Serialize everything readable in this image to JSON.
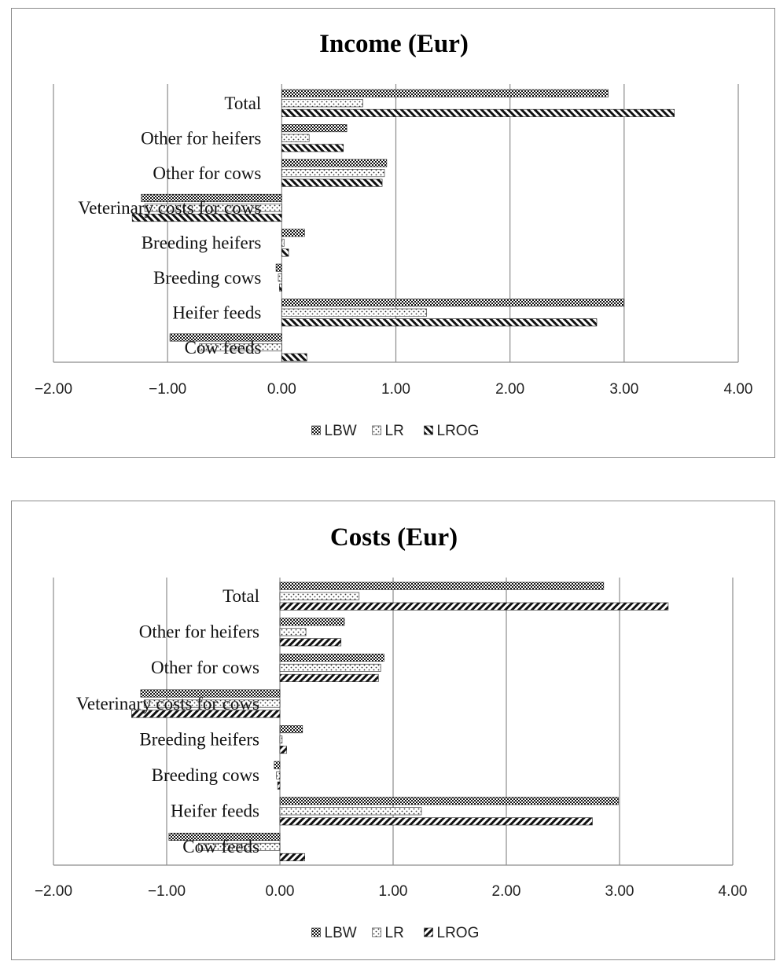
{
  "chart_data": [
    {
      "type": "bar",
      "orientation": "horizontal",
      "title": "Income (Eur)",
      "categories": [
        "Total",
        "Other for heifers",
        "Other for cows",
        "Veterinary costs for cows",
        "Breeding heifers",
        "Breeding cows",
        "Heifer feeds",
        "Cow feeds"
      ],
      "series": [
        {
          "name": "LBW",
          "values": [
            2.86,
            0.57,
            0.92,
            -1.23,
            0.2,
            -0.05,
            3.0,
            -0.98
          ]
        },
        {
          "name": "LR",
          "values": [
            0.71,
            0.24,
            0.9,
            -1.2,
            0.02,
            -0.03,
            1.27,
            -0.72
          ]
        },
        {
          "name": "LROG",
          "values": [
            3.44,
            0.54,
            0.88,
            -1.31,
            0.06,
            -0.02,
            2.76,
            0.22
          ]
        }
      ],
      "xlim": [
        -2.0,
        4.0
      ],
      "xticks": [
        "−2.00",
        "−1.00",
        "0.00",
        "1.00",
        "2.00",
        "3.00",
        "4.00"
      ],
      "grid": "vertical",
      "legend": "bottom",
      "patterns": {
        "LBW": "dense-check",
        "LR": "dots",
        "LROG": "back-diagonal"
      }
    },
    {
      "type": "bar",
      "orientation": "horizontal",
      "title": "Costs (Eur)",
      "categories": [
        "Total",
        "Other for heifers",
        "Other for cows",
        "Veterinary costs for cows",
        "Breeding heifers",
        "Breeding cows",
        "Heifer feeds",
        "Cow feeds"
      ],
      "series": [
        {
          "name": "LBW",
          "values": [
            2.86,
            0.57,
            0.92,
            -1.23,
            0.2,
            -0.05,
            2.99,
            -0.98
          ]
        },
        {
          "name": "LR",
          "values": [
            0.7,
            0.23,
            0.89,
            -1.2,
            0.02,
            -0.03,
            1.25,
            -0.72
          ]
        },
        {
          "name": "LROG",
          "values": [
            3.43,
            0.54,
            0.87,
            -1.31,
            0.06,
            -0.02,
            2.76,
            0.22
          ]
        }
      ],
      "xlim": [
        -2.0,
        4.0
      ],
      "xticks": [
        "−2.00",
        "−1.00",
        "0.00",
        "1.00",
        "2.00",
        "3.00",
        "4.00"
      ],
      "grid": "vertical",
      "legend": "bottom",
      "patterns": {
        "LBW": "dense-check",
        "LR": "dots",
        "LROG": "forward-diagonal"
      }
    }
  ]
}
